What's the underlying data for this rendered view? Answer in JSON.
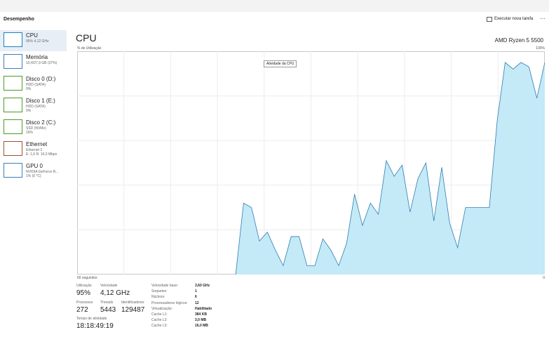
{
  "header": {
    "title": "Desempenho",
    "action": "Executar nova tarefa"
  },
  "sidebar": [
    {
      "name": "CPU",
      "detail": "95% 4,12 GHz",
      "color": "#1b83c2"
    },
    {
      "name": "Memória",
      "detail": "10,4/27,9 GB (37%)",
      "color": "#3a7fc0"
    },
    {
      "name": "Disco 0 (D:)",
      "detail": "HDD (SATA)",
      "detail2": "0%",
      "color": "#4d9a24"
    },
    {
      "name": "Disco 1 (E:)",
      "detail": "HDD (SATA)",
      "detail2": "0%",
      "color": "#4d9a24"
    },
    {
      "name": "Disco 2 (C:)",
      "detail": "SSD (NVMe)",
      "detail2": "16%",
      "color": "#4d9a24"
    },
    {
      "name": "Ethernet",
      "detail": "Ethernet 3",
      "detail2": "E: 1,6 R: 16,0 Mbps",
      "color": "#a0522d"
    },
    {
      "name": "GPU 0",
      "detail": "NVIDIA GeForce R...",
      "detail2": "1% (0 °C)",
      "color": "#3a7fc0"
    }
  ],
  "main": {
    "title": "CPU",
    "processor": "AMD Ryzen 5 5500",
    "tooltip": "Atividade da CPU"
  },
  "graph": {
    "y_label": "% de Utilização",
    "y_max_label": "100%",
    "x_start_label": "60 segundos",
    "x_end_label": "0",
    "ylim": [
      0,
      100
    ],
    "values": [
      null,
      null,
      null,
      null,
      null,
      null,
      null,
      null,
      null,
      null,
      null,
      null,
      null,
      null,
      null,
      null,
      null,
      null,
      null,
      null,
      0,
      32,
      30,
      15,
      19,
      11,
      4,
      17,
      17,
      4,
      4,
      16,
      11,
      4,
      14,
      36,
      22,
      32,
      27,
      51,
      44,
      49,
      28,
      43,
      50,
      24,
      48,
      23,
      12,
      30,
      30,
      30,
      30,
      69,
      95,
      92,
      95,
      93,
      79,
      95
    ]
  },
  "stats": [
    {
      "label": "Utilização",
      "value": "95%"
    },
    {
      "label": "Velocidade",
      "value": "4,12 GHz"
    },
    {
      "label": "Processos",
      "value": "272"
    },
    {
      "label": "Threads",
      "value": "5443"
    },
    {
      "label": "Identificadores",
      "value": "129487"
    },
    {
      "label": "Tempo de atividade",
      "value": "18:18:49:19"
    }
  ],
  "specs": [
    {
      "label": "Velocidade base:",
      "value": "3,60 GHz"
    },
    {
      "label": "Soquetes:",
      "value": "1"
    },
    {
      "label": "Núcleos:",
      "value": "6"
    },
    {
      "label": "Processadores lógicos:",
      "value": "12"
    },
    {
      "label": "Virtualização:",
      "value": "Habilitado"
    },
    {
      "label": "Cache L1:",
      "value": "384 KB"
    },
    {
      "label": "Cache L2:",
      "value": "3,0 MB"
    },
    {
      "label": "Cache L3:",
      "value": "16,0 MB"
    }
  ]
}
